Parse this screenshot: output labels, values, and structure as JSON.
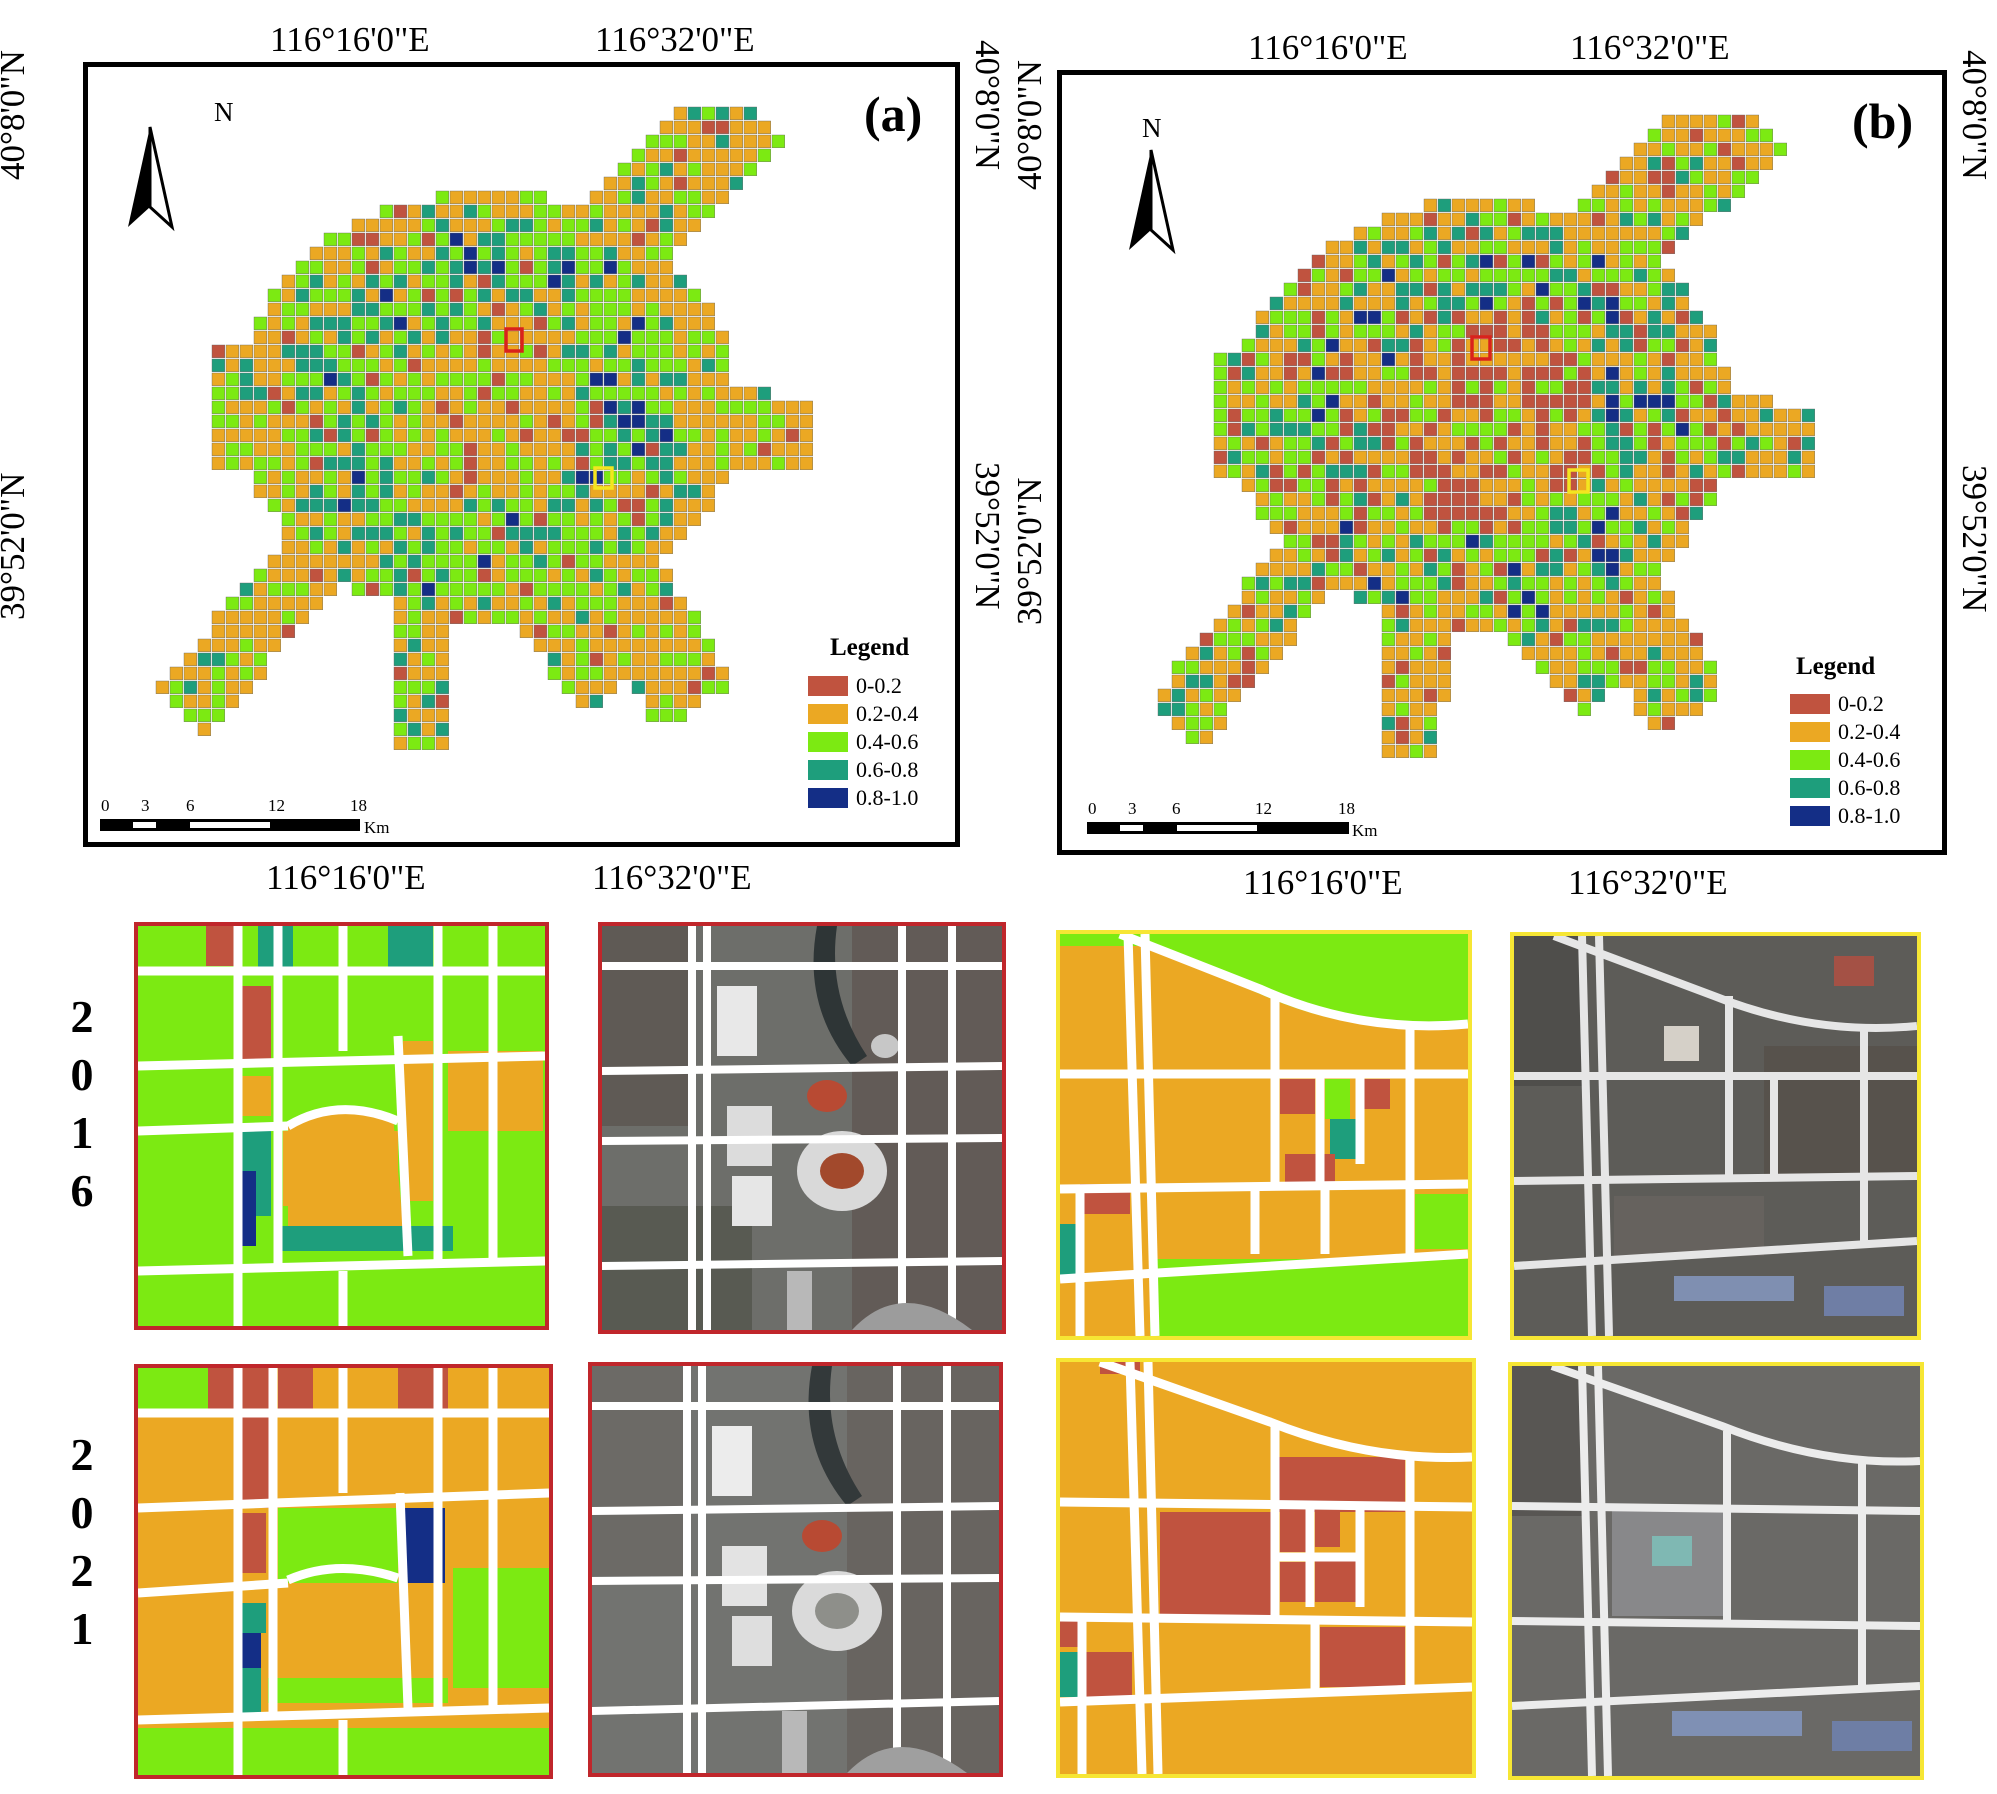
{
  "colors": {
    "c0": "#c0533f",
    "c1": "#eba823",
    "c2": "#7cea12",
    "c3": "#1e9e7c",
    "c4": "#142e86",
    "road": "#ffffff",
    "boundary": "#666666",
    "red_box": "#d9221c",
    "yellow_box": "#f3e520"
  },
  "panels": [
    {
      "label": "(a)",
      "top_ticks": [
        "116°16'0\"E",
        "116°32'0\"E"
      ],
      "bottom_ticks": [
        "116°16'0\"E",
        "116°32'0\"E"
      ],
      "left_ticks": [
        "40°8'0\"N",
        "39°52'0\"N"
      ],
      "right_ticks": [
        "40°8'0\"N",
        "39°52'0\"N"
      ],
      "north": "N",
      "legend_title": "Legend",
      "legend": [
        "0-0.2",
        "0.2-0.4",
        "0.4-0.6",
        "0.6-0.8",
        "0.8-1.0"
      ],
      "scale_ticks": [
        "0",
        "3",
        "6",
        "12",
        "18"
      ],
      "scale_unit": "Km"
    },
    {
      "label": "(b)",
      "top_ticks": [
        "116°16'0\"E",
        "116°32'0\"E"
      ],
      "bottom_ticks": [
        "116°16'0\"E",
        "116°32'0\"E"
      ],
      "left_ticks": [
        "40°8'0\"N",
        "39°52'0\"N"
      ],
      "right_ticks": [
        "40°8'0\"N",
        "39°52'0\"N"
      ],
      "north": "N",
      "legend_title": "Legend",
      "legend": [
        "0-0.2",
        "0.2-0.4",
        "0.4-0.6",
        "0.6-0.8",
        "0.8-1.0"
      ],
      "scale_ticks": [
        "0",
        "3",
        "6",
        "12",
        "18"
      ],
      "scale_unit": "Km"
    }
  ],
  "years": [
    {
      "digits": [
        "2",
        "0",
        "1",
        "6"
      ]
    },
    {
      "digits": [
        "2",
        "0",
        "2",
        "1"
      ]
    }
  ]
}
